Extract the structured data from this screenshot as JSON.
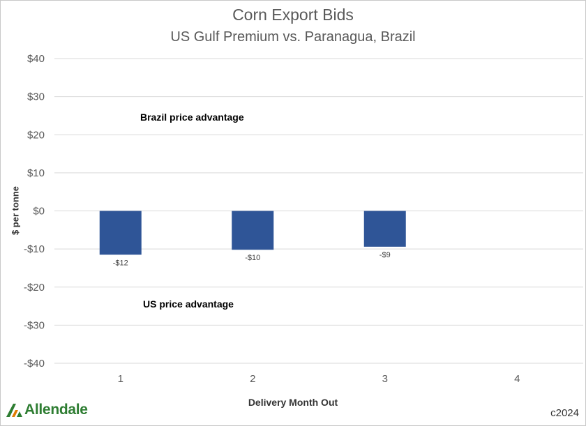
{
  "chart_data": {
    "type": "bar",
    "title": "Corn Export Bids",
    "subtitle": "US Gulf Premium vs. Paranagua, Brazil",
    "xlabel": "Delivery Month Out",
    "ylabel": "$ per tonne",
    "categories": [
      "1",
      "2",
      "3",
      "4"
    ],
    "values": [
      -11.5,
      -10.2,
      -9.4,
      null
    ],
    "data_labels": [
      "-$12",
      "-$10",
      "-$9",
      ""
    ],
    "ylim": [
      -40,
      40
    ],
    "yticks": [
      40,
      30,
      20,
      10,
      0,
      -10,
      -20,
      -30,
      -40
    ],
    "ytick_labels": [
      "$40",
      "$30",
      "$20",
      "$10",
      "$0",
      "-$10",
      "-$20",
      "-$30",
      "-$40"
    ],
    "annotations": {
      "upper": "Brazil price advantage",
      "lower": "US price advantage"
    },
    "bar_color": "#2f5597",
    "grid": true,
    "legend": "none"
  },
  "footer": {
    "logo_text": "Allendale",
    "copyright": "c2024"
  },
  "colors": {
    "logo_green": "#2e7d32",
    "logo_orange": "#e07b00"
  }
}
